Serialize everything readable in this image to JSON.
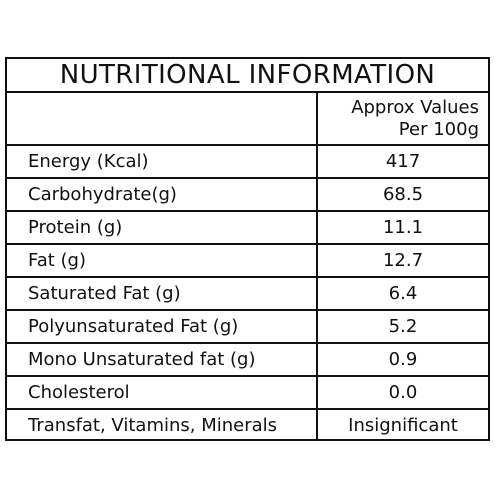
{
  "title": "NUTRITIONAL INFORMATION",
  "header": {
    "value_line1": "Approx Values",
    "value_line2": "Per 100g"
  },
  "rows": [
    {
      "name": "Energy (Kcal)",
      "value": "417"
    },
    {
      "name": "Carbohydrate(g)",
      "value": "68.5"
    },
    {
      "name": "Protein (g)",
      "value": "11.1"
    },
    {
      "name": "Fat (g)",
      "value": "12.7"
    },
    {
      "name": "Saturated Fat (g)",
      "value": "6.4"
    },
    {
      "name": "Polyunsaturated Fat (g)",
      "value": "5.2"
    },
    {
      "name": "Mono Unsaturated fat (g)",
      "value": "0.9"
    },
    {
      "name": "Cholesterol",
      "value": "0.0"
    },
    {
      "name": "Transfat, Vitamins, Minerals",
      "value": "Insignificant"
    }
  ]
}
